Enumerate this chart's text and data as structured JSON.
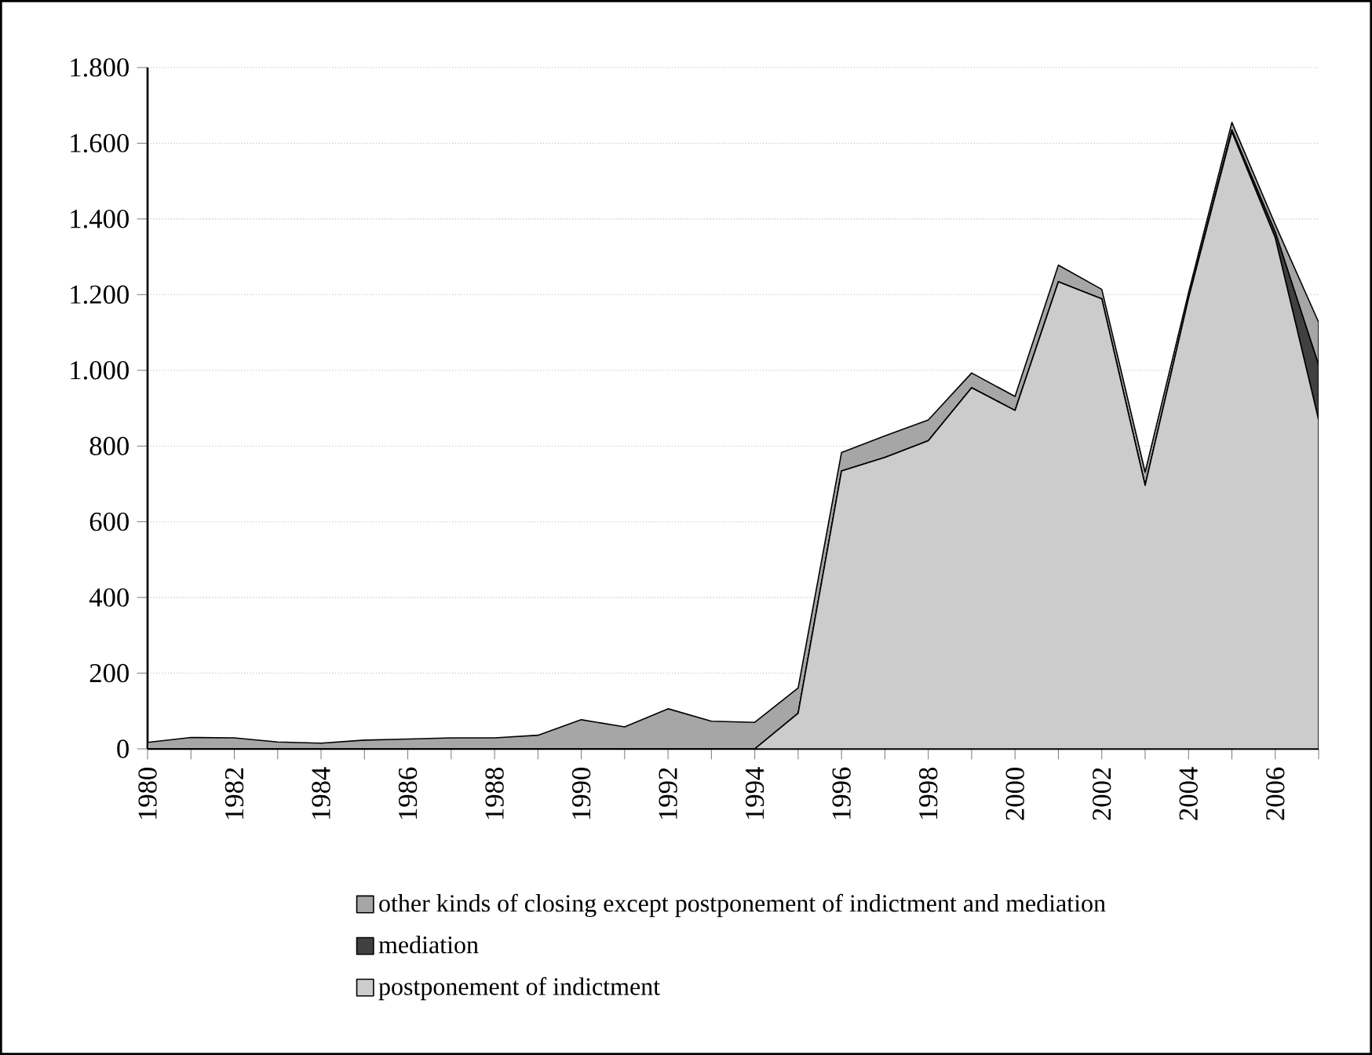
{
  "chart_data": {
    "type": "area",
    "stacked": true,
    "categories": [
      "1980",
      null,
      "1982",
      null,
      "1984",
      null,
      "1986",
      null,
      "1988",
      null,
      "1990",
      null,
      "1992",
      null,
      "1994",
      null,
      "1996",
      null,
      "1998",
      null,
      "2000",
      null,
      "2002",
      null,
      "2004",
      null,
      "2006",
      null
    ],
    "series": [
      {
        "name": "postponement of indictment",
        "color": "#cccccc",
        "values": [
          0,
          0,
          0,
          0,
          0,
          0,
          0,
          0,
          0,
          0,
          0,
          0,
          0,
          0,
          0,
          94,
          734,
          770,
          814,
          954,
          894,
          1234,
          1189,
          696,
          1190,
          1630,
          1350,
          869
        ]
      },
      {
        "name": "mediation",
        "color": "#404040",
        "values": [
          0,
          0,
          0,
          0,
          0,
          0,
          0,
          0,
          0,
          0,
          0,
          0,
          0,
          0,
          0,
          0,
          0,
          0,
          0,
          0,
          0,
          0,
          0,
          0,
          0,
          5,
          15,
          145
        ]
      },
      {
        "name": "other kinds of closing except postponement of indictment and mediation",
        "color": "#a6a6a6",
        "values": [
          17,
          30,
          29,
          18,
          15,
          23,
          26,
          29,
          29,
          36,
          77,
          58,
          106,
          73,
          70,
          67,
          49,
          57,
          55,
          39,
          37,
          44,
          25,
          35,
          15,
          20,
          20,
          113
        ]
      }
    ],
    "ylim": [
      0,
      1800
    ],
    "yticks": [
      {
        "value": 0,
        "label": "0"
      },
      {
        "value": 200,
        "label": "200"
      },
      {
        "value": 400,
        "label": "400"
      },
      {
        "value": 600,
        "label": "600"
      },
      {
        "value": 800,
        "label": "800"
      },
      {
        "value": 1000,
        "label": "1.000"
      },
      {
        "value": 1200,
        "label": "1.200"
      },
      {
        "value": 1400,
        "label": "1.400"
      },
      {
        "value": 1600,
        "label": "1.600"
      },
      {
        "value": 1800,
        "label": "1.800"
      }
    ],
    "grid": "y",
    "legend": "bottom"
  }
}
